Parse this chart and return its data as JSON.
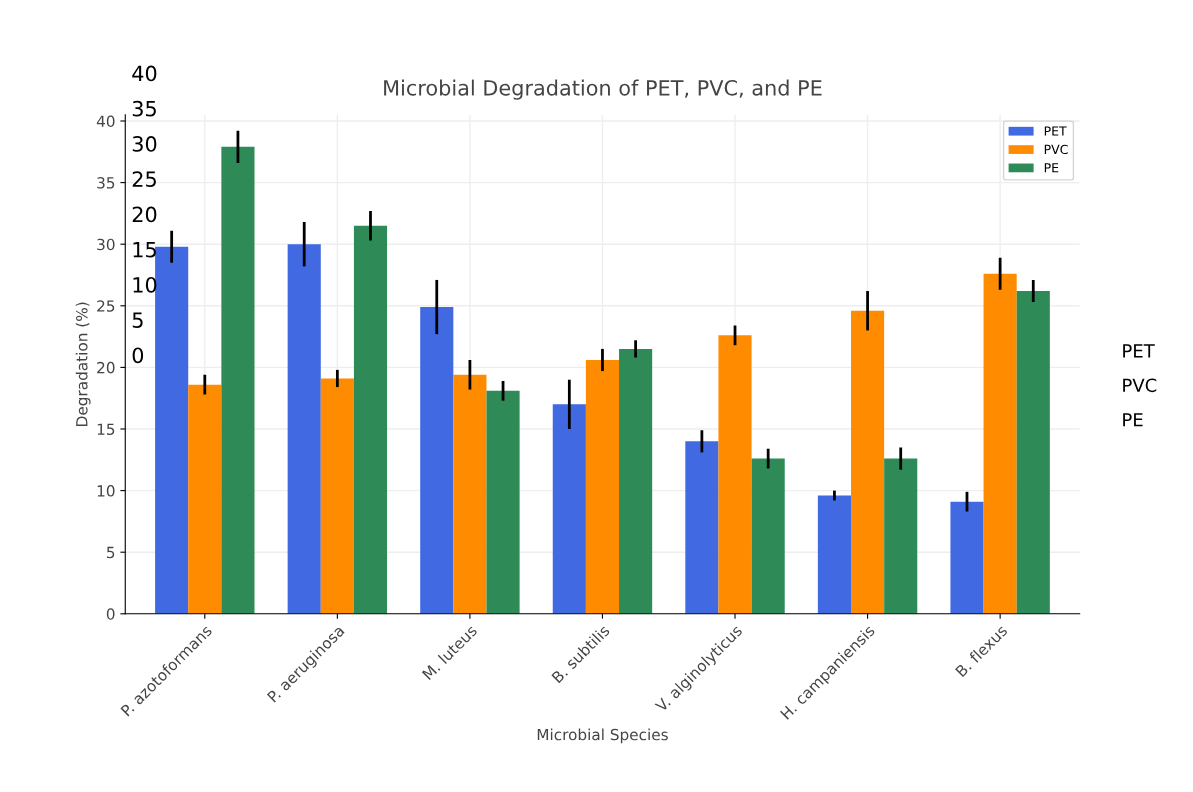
{
  "chart_data": {
    "type": "bar",
    "title": "Microbial Degradation of PET, PVC, and PE",
    "xlabel": "Microbial Species",
    "ylabel": "Degradation (%)",
    "categories": [
      "P. azotoformans",
      "P. aeruginosa",
      "M. luteus",
      "B. subtilis",
      "V. alginolyticus",
      "H. campaniensis",
      "B. flexus"
    ],
    "series": [
      {
        "name": "PET",
        "color": "#4169e1",
        "values": [
          29.8,
          30.0,
          24.9,
          17.0,
          14.0,
          9.6,
          9.1
        ],
        "errors": [
          1.3,
          1.8,
          2.2,
          2.0,
          0.9,
          0.4,
          0.8
        ]
      },
      {
        "name": "PVC",
        "color": "#ff8c00",
        "values": [
          18.6,
          19.1,
          19.4,
          20.6,
          22.6,
          24.6,
          27.6
        ],
        "errors": [
          0.8,
          0.7,
          1.2,
          0.9,
          0.8,
          1.6,
          1.3
        ]
      },
      {
        "name": "PE",
        "color": "#2e8b57",
        "values": [
          37.9,
          31.5,
          18.1,
          21.5,
          12.6,
          12.6,
          26.2
        ],
        "errors": [
          1.3,
          1.2,
          0.8,
          0.7,
          0.8,
          0.9,
          0.9
        ]
      }
    ],
    "ylim": [
      0,
      40.5
    ],
    "yticks": [
      0,
      5,
      10,
      15,
      20,
      25,
      30,
      35,
      40
    ],
    "grid": true,
    "legend": "top right",
    "annotations": [
      "40",
      "35",
      "30",
      "25",
      "20",
      "15",
      "10",
      "5",
      "0",
      "PET",
      "PVC",
      "PE"
    ]
  }
}
